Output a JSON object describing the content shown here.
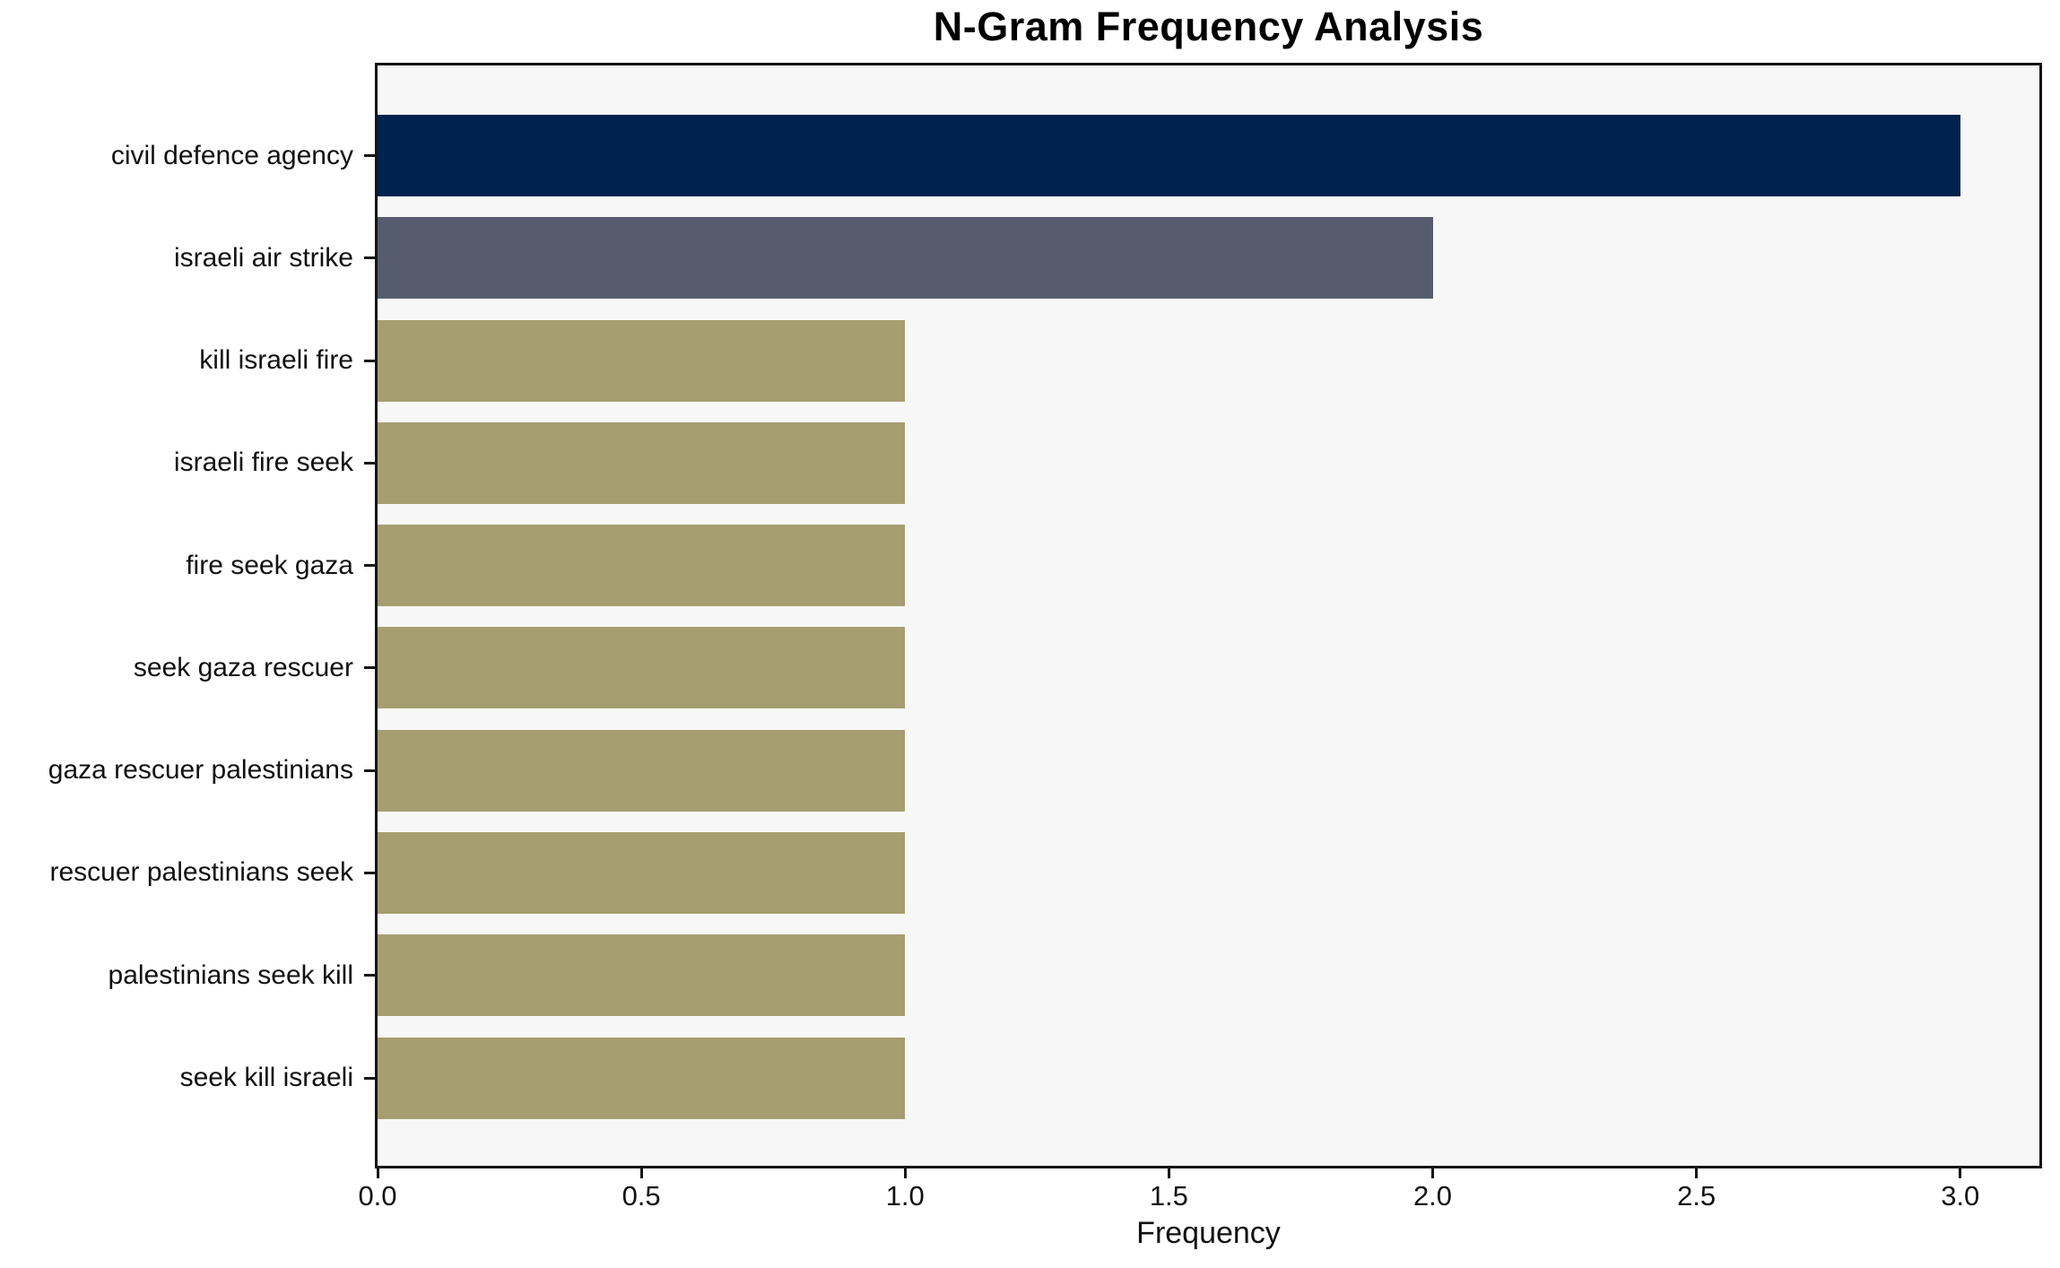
{
  "chart_data": {
    "type": "bar",
    "orientation": "horizontal",
    "title": "N-Gram Frequency Analysis",
    "xlabel": "Frequency",
    "ylabel": "",
    "categories": [
      "civil defence agency",
      "israeli air strike",
      "kill israeli fire",
      "israeli fire seek",
      "fire seek gaza",
      "seek gaza rescuer",
      "gaza rescuer palestinians",
      "rescuer palestinians seek",
      "palestinians seek kill",
      "seek kill israeli"
    ],
    "values": [
      3,
      2,
      1,
      1,
      1,
      1,
      1,
      1,
      1,
      1
    ],
    "bar_colors": [
      "#00224e",
      "#565c6d",
      "#a69e71",
      "#a69e71",
      "#a69e71",
      "#a69e71",
      "#a69e71",
      "#a69e71",
      "#a69e71",
      "#a69e71"
    ],
    "xticks": [
      0.0,
      0.5,
      1.0,
      1.5,
      2.0,
      2.5,
      3.0
    ],
    "xtick_labels": [
      "0.0",
      "0.5",
      "1.0",
      "1.5",
      "2.0",
      "2.5",
      "3.0"
    ],
    "xlim": [
      0,
      3.15
    ],
    "bar_height_fraction": 0.8,
    "grid": false,
    "legend": null,
    "plot_background": "#f7f7f7",
    "figure_background": "#ffffff",
    "spine_color": "#151515",
    "text_color": "#111111"
  }
}
